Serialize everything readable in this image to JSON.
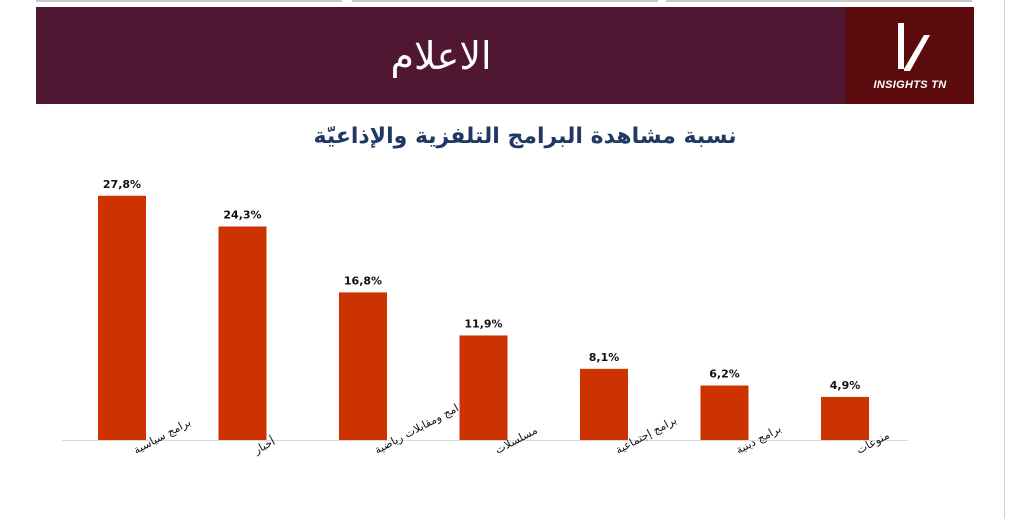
{
  "header": {
    "title": "الاعلام",
    "logo_text": "INSIGHTS TN"
  },
  "colors": {
    "banner": "#501733",
    "logo_bg": "#5b0b0b",
    "bar": "#cc3300",
    "title": "#1f3864"
  },
  "chart_data": {
    "type": "bar",
    "title": "نسبة مشاهدة البرامج التلفزية والإذاعيّة",
    "categories": [
      "برامج سياسية",
      "أخبار",
      "برامج ومقابلات رياضية",
      "مسلسلات",
      "برامج إجتماعية",
      "برامج دينية",
      "منوعات"
    ],
    "values": [
      27.8,
      24.3,
      16.8,
      11.9,
      8.1,
      6.2,
      4.9
    ],
    "value_labels": [
      "27,8%",
      "24,3%",
      "16,8%",
      "11,9%",
      "8,1%",
      "6,2%",
      "4,9%"
    ],
    "unit": "%",
    "ylim": [
      0,
      28
    ],
    "grid": false,
    "legend": "none"
  }
}
